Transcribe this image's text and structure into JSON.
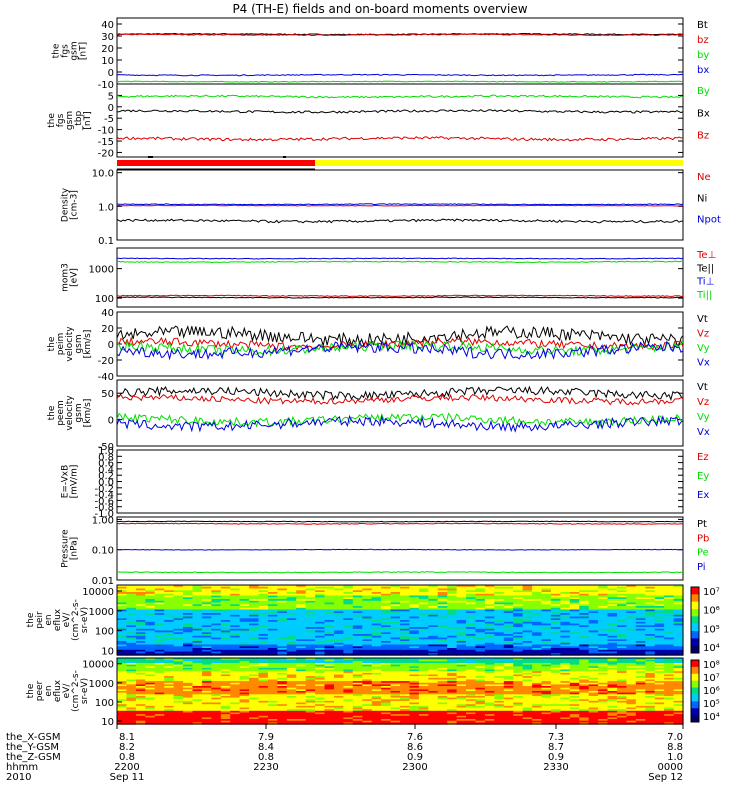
{
  "title": "P4 (TH-E) fields and on-board moments overview",
  "colors": {
    "black": "#000000",
    "red": "#dd0000",
    "blue": "#0000dd",
    "green": "#00dd00",
    "yellow": "#ffff00",
    "bar_red": "#ff0000"
  },
  "chart_data": [
    {
      "type": "line",
      "panel": "fgs_btot",
      "ylabel": [
        "the",
        "fgs",
        "gsm",
        "[nT]"
      ],
      "ylim": [
        -10,
        45
      ],
      "yticks": [
        "40",
        "30",
        "20",
        "10",
        "0",
        "-10"
      ],
      "series": [
        {
          "name": "Bt",
          "color": "#000000",
          "level": 31.5,
          "noise": 0.4
        },
        {
          "name": "bz",
          "color": "#dd0000",
          "level": 31,
          "noise": 0.4
        },
        {
          "name": "by",
          "color": "#00dd00",
          "level": -8,
          "noise": 0.3
        },
        {
          "name": "bx",
          "color": "#0000dd",
          "level": -2.5,
          "noise": 0.4
        }
      ]
    },
    {
      "type": "line",
      "panel": "fgs_gsm_tbp",
      "ylabel": [
        "the",
        "fgs",
        "gsm",
        "_tbp",
        "[nT]"
      ],
      "ylim": [
        -22,
        10
      ],
      "yticks": [
        "5",
        "0",
        "-5",
        "-10",
        "-15",
        "-20"
      ],
      "series": [
        {
          "name": "By",
          "color": "#00dd00",
          "level": 4.5,
          "noise": 0.4
        },
        {
          "name": "Bx",
          "color": "#000000",
          "level": -2,
          "noise": 0.5
        },
        {
          "name": "Bz",
          "color": "#dd0000",
          "level": -14,
          "noise": 0.6
        }
      ]
    },
    {
      "type": "line",
      "panel": "density",
      "ylabel": [
        "Density",
        "[cm-3]"
      ],
      "ylog": true,
      "ylim": [
        0.1,
        12
      ],
      "yticks": [
        "10.0",
        "1.0",
        "0.1"
      ],
      "series": [
        {
          "name": "Ne",
          "color": "#dd0000",
          "level": 1.05,
          "noise": 0.02
        },
        {
          "name": "Ni",
          "color": "#000000",
          "level": 0.37,
          "noise": 0.03
        },
        {
          "name": "Npot",
          "color": "#0000dd",
          "level": 1.15,
          "noise": 0.03
        }
      ]
    },
    {
      "type": "line",
      "panel": "temperature",
      "ylabel": [
        "mom3",
        "[eV]"
      ],
      "ylog": true,
      "ylim": [
        50,
        5000
      ],
      "yticks": [
        "1000",
        "100"
      ],
      "series": [
        {
          "name": "Te⊥",
          "color": "#dd0000",
          "level": 120,
          "noise": 4
        },
        {
          "name": "Te||",
          "color": "#000000",
          "level": 105,
          "noise": 3
        },
        {
          "name": "Ti⊥",
          "color": "#0000dd",
          "level": 2200,
          "noise": 60
        },
        {
          "name": "Ti||",
          "color": "#00dd00",
          "level": 1700,
          "noise": 60
        }
      ]
    },
    {
      "type": "line",
      "panel": "peim_velocity",
      "ylabel": [
        "the",
        "peim",
        "velocity",
        "gsm",
        "[km/s]"
      ],
      "ylim": [
        -40,
        40
      ],
      "yticks": [
        "40",
        "20",
        "0",
        "-20",
        "-40"
      ],
      "series": [
        {
          "name": "Vt",
          "color": "#000000",
          "level": 10,
          "noise": 8
        },
        {
          "name": "Vz",
          "color": "#dd0000",
          "level": 0,
          "noise": 5
        },
        {
          "name": "Vy",
          "color": "#00dd00",
          "level": -5,
          "noise": 6
        },
        {
          "name": "Vx",
          "color": "#0000dd",
          "level": -8,
          "noise": 7
        }
      ]
    },
    {
      "type": "line",
      "panel": "peem_velocity",
      "ylabel": [
        "the",
        "peem",
        "velocity",
        "gsm",
        "[km/s]"
      ],
      "ylim": [
        -50,
        75
      ],
      "yticks": [
        "50",
        "0",
        "-50"
      ],
      "series": [
        {
          "name": "Vt",
          "color": "#000000",
          "level": 50,
          "noise": 8
        },
        {
          "name": "Vz",
          "color": "#dd0000",
          "level": 38,
          "noise": 6
        },
        {
          "name": "Vy",
          "color": "#00dd00",
          "level": 0,
          "noise": 8
        },
        {
          "name": "Vx",
          "color": "#0000dd",
          "level": -8,
          "noise": 9
        }
      ]
    },
    {
      "type": "line",
      "panel": "efield",
      "ylabel": [
        "E=-VxB",
        "[mV/m]"
      ],
      "ylim": [
        -1,
        1
      ],
      "yticks": [
        "1.0",
        "0.8",
        "0.6",
        "0.4",
        "0.2",
        "0.0",
        "-0.2",
        "-0.4",
        "-0.6",
        "-0.8",
        "-1.0"
      ],
      "series": [
        {
          "name": "Ez",
          "color": "#dd0000"
        },
        {
          "name": "Ey",
          "color": "#00dd00"
        },
        {
          "name": "Ex",
          "color": "#0000dd"
        }
      ]
    },
    {
      "type": "line",
      "panel": "pressure",
      "ylabel": [
        "Pressure",
        "[nPa]"
      ],
      "ylog": true,
      "ylim": [
        0.01,
        1.2
      ],
      "yticks": [
        "1.00",
        "0.10",
        "0.01"
      ],
      "series": [
        {
          "name": "Pt",
          "color": "#000000",
          "level": 0.85,
          "noise": 0.02
        },
        {
          "name": "Pb",
          "color": "#dd0000",
          "level": 0.72,
          "noise": 0.02
        },
        {
          "name": "Pe",
          "color": "#00dd00",
          "level": 0.018,
          "noise": 0.0005
        },
        {
          "name": "Pi",
          "color": "#0000dd",
          "level": 0.1,
          "noise": 0.002
        }
      ]
    },
    {
      "type": "heatmap",
      "panel": "peir_en_eflux",
      "ylabel": [
        "the",
        "peir",
        "en",
        "eflux",
        "eV/",
        "(cm^2-s-",
        "sr-eV)"
      ],
      "ylog": true,
      "ylim": [
        6,
        20000
      ],
      "yticks": [
        "10000",
        "1000",
        "100",
        "10"
      ],
      "colorbar_ticks": [
        "10⁷",
        "10⁶",
        "10⁵",
        "10⁴"
      ]
    },
    {
      "type": "heatmap",
      "panel": "peer_en_eflux",
      "ylabel": [
        "the",
        "peer",
        "en",
        "eflux",
        "eV/",
        "(cm^2-s-",
        "sr-eV)"
      ],
      "ylog": true,
      "ylim": [
        7,
        20000
      ],
      "yticks": [
        "10000",
        "1000",
        "100",
        "10"
      ],
      "colorbar_ticks": [
        "10⁸",
        "10⁷",
        "10⁶",
        "10⁵",
        "10⁴"
      ]
    }
  ],
  "xaxis": {
    "row_labels": [
      "the_X-GSM",
      "the_Y-GSM",
      "the_Z-GSM",
      "hhmm",
      "2010"
    ],
    "ticks": [
      {
        "x": "8.1",
        "y": "8.2",
        "z": "0.8",
        "hhmm": "2200",
        "date": "Sep 11"
      },
      {
        "x": "7.9",
        "y": "8.4",
        "z": "0.8",
        "hhmm": "2230",
        "date": ""
      },
      {
        "x": "7.6",
        "y": "8.6",
        "z": "0.9",
        "hhmm": "2300",
        "date": ""
      },
      {
        "x": "7.3",
        "y": "8.7",
        "z": "0.9",
        "hhmm": "2330",
        "date": ""
      },
      {
        "x": "7.0",
        "y": "8.8",
        "z": "1.0",
        "hhmm": "0000",
        "date": "Sep 12"
      }
    ]
  }
}
